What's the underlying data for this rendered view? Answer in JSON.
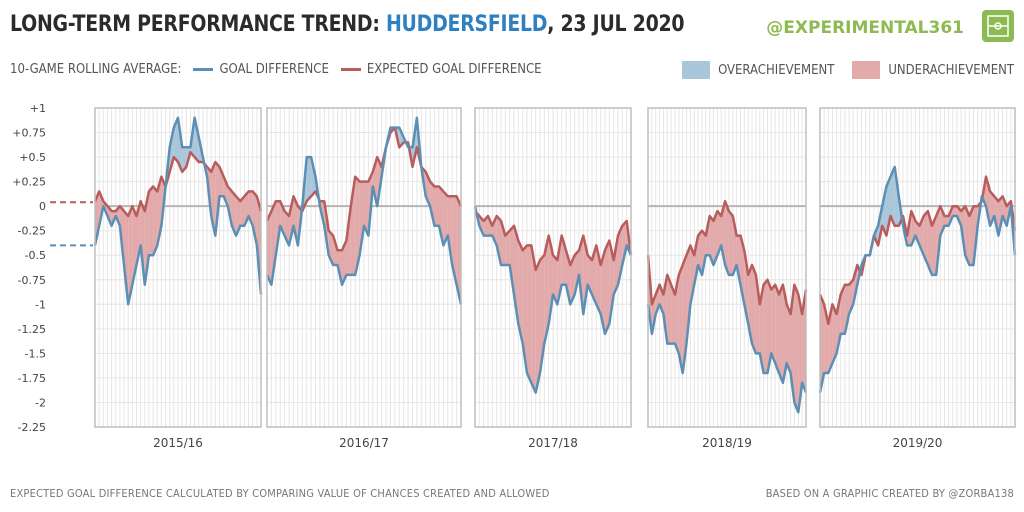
{
  "header": {
    "title_prefix": "LONG-TERM PERFORMANCE TREND: ",
    "team": "HUDDERSFIELD",
    "title_suffix": ", 23 JUL 2020",
    "handle": "@EXPERIMENTAL361"
  },
  "legend": {
    "rolling_label": "10-GAME ROLLING AVERAGE:",
    "goal_difference": "GOAL DIFFERENCE",
    "expected_goal_difference": "EXPECTED GOAL DIFFERENCE",
    "overachievement": "OVERACHIEVEMENT",
    "underachievement": "UNDERACHIEVEMENT"
  },
  "footer": {
    "note": "EXPECTED GOAL DIFFERENCE CALCULATED BY COMPARING VALUE OF CHANCES CREATED AND ALLOWED",
    "credit": "BASED ON A GRAPHIC CREATED BY @ZORBA138"
  },
  "colors": {
    "gd": "#5d8fb5",
    "xgd": "#b85c5c",
    "over": "#aac6da",
    "under": "#e2aaaa"
  },
  "chart_data": {
    "type": "line",
    "title": "LONG-TERM PERFORMANCE TREND: HUDDERSFIELD, 23 JUL 2020",
    "ylim": [
      -2.25,
      1
    ],
    "yticks": [
      1,
      0.75,
      0.5,
      0.25,
      0,
      -0.25,
      -0.5,
      -0.75,
      -1,
      -1.25,
      -1.5,
      -1.75,
      -2,
      -2.25
    ],
    "ytick_labels": [
      "+1",
      "+0.75",
      "+0.5",
      "+0.25",
      "0",
      "-0.25",
      "-0.5",
      "-0.75",
      "-1",
      "-1.25",
      "-1.5",
      "-1.75",
      "-2",
      "-2.25"
    ],
    "previous_season_baseline": {
      "gd": -0.4,
      "xgd": 0.04
    },
    "series_names": [
      "GOAL DIFFERENCE",
      "EXPECTED GOAL DIFFERENCE"
    ],
    "panels": [
      {
        "season": "2015/16",
        "gd": [
          -0.4,
          -0.2,
          0,
          -0.1,
          -0.2,
          -0.1,
          -0.2,
          -0.6,
          -1,
          -0.8,
          -0.6,
          -0.4,
          -0.8,
          -0.5,
          -0.5,
          -0.4,
          -0.2,
          0.2,
          0.6,
          0.8,
          0.9,
          0.6,
          0.6,
          0.6,
          0.9,
          0.7,
          0.5,
          0.3,
          -0.1,
          -0.3,
          0.1,
          0.1,
          0,
          -0.2,
          -0.3,
          -0.2,
          -0.2,
          -0.1,
          -0.2,
          -0.4,
          -0.9
        ],
        "xgd": [
          0.05,
          0.15,
          0.05,
          0,
          -0.05,
          -0.05,
          0,
          -0.05,
          -0.1,
          0,
          -0.1,
          0.05,
          -0.05,
          0.15,
          0.2,
          0.15,
          0.3,
          0.2,
          0.35,
          0.5,
          0.45,
          0.35,
          0.4,
          0.55,
          0.5,
          0.45,
          0.45,
          0.4,
          0.35,
          0.45,
          0.4,
          0.3,
          0.2,
          0.15,
          0.1,
          0.05,
          0.1,
          0.15,
          0.15,
          0.1,
          -0.05
        ]
      },
      {
        "season": "2016/17",
        "gd": [
          -0.7,
          -0.8,
          -0.5,
          -0.2,
          -0.3,
          -0.4,
          -0.2,
          -0.4,
          0,
          0.5,
          0.5,
          0.3,
          0,
          -0.2,
          -0.5,
          -0.6,
          -0.6,
          -0.8,
          -0.7,
          -0.7,
          -0.7,
          -0.5,
          -0.2,
          -0.3,
          0.2,
          0,
          0.3,
          0.6,
          0.8,
          0.8,
          0.8,
          0.7,
          0.6,
          0.6,
          0.9,
          0.4,
          0.1,
          0,
          -0.2,
          -0.2,
          -0.4,
          -0.3,
          -0.6,
          -0.8,
          -1
        ],
        "xgd": [
          -0.15,
          -0.05,
          0.05,
          0.05,
          -0.05,
          -0.1,
          0.1,
          0,
          -0.05,
          0.05,
          0.1,
          0.15,
          0.05,
          0.05,
          -0.25,
          -0.3,
          -0.45,
          -0.45,
          -0.35,
          0,
          0.3,
          0.25,
          0.25,
          0.25,
          0.35,
          0.5,
          0.4,
          0.6,
          0.75,
          0.8,
          0.6,
          0.65,
          0.65,
          0.4,
          0.6,
          0.4,
          0.35,
          0.25,
          0.2,
          0.2,
          0.15,
          0.1,
          0.1,
          0.1,
          0
        ]
      },
      {
        "season": "2017/18",
        "gd": [
          0,
          -0.2,
          -0.3,
          -0.3,
          -0.3,
          -0.4,
          -0.6,
          -0.6,
          -0.6,
          -0.9,
          -1.2,
          -1.4,
          -1.7,
          -1.8,
          -1.9,
          -1.7,
          -1.4,
          -1.2,
          -0.9,
          -1,
          -0.8,
          -0.8,
          -1,
          -0.9,
          -0.7,
          -1.1,
          -0.8,
          -0.9,
          -1,
          -1.1,
          -1.3,
          -1.2,
          -0.9,
          -0.8,
          -0.6,
          -0.4,
          -0.5
        ],
        "xgd": [
          -0.05,
          -0.1,
          -0.15,
          -0.1,
          -0.2,
          -0.1,
          -0.15,
          -0.3,
          -0.25,
          -0.2,
          -0.35,
          -0.45,
          -0.4,
          -0.4,
          -0.65,
          -0.55,
          -0.5,
          -0.3,
          -0.5,
          -0.55,
          -0.3,
          -0.45,
          -0.6,
          -0.5,
          -0.45,
          -0.3,
          -0.5,
          -0.55,
          -0.4,
          -0.6,
          -0.45,
          -0.35,
          -0.55,
          -0.3,
          -0.2,
          -0.15,
          -0.5
        ]
      },
      {
        "season": "2018/19",
        "gd": [
          -1,
          -1.3,
          -1.1,
          -1,
          -1.1,
          -1.4,
          -1.4,
          -1.4,
          -1.5,
          -1.7,
          -1.4,
          -1,
          -0.8,
          -0.6,
          -0.7,
          -0.5,
          -0.5,
          -0.6,
          -0.5,
          -0.4,
          -0.6,
          -0.7,
          -0.7,
          -0.6,
          -0.8,
          -1,
          -1.2,
          -1.4,
          -1.5,
          -1.5,
          -1.7,
          -1.7,
          -1.5,
          -1.6,
          -1.7,
          -1.8,
          -1.6,
          -1.7,
          -2,
          -2.1,
          -1.8,
          -1.9
        ],
        "xgd": [
          -0.5,
          -1,
          -0.9,
          -0.8,
          -0.9,
          -0.7,
          -0.8,
          -0.9,
          -0.7,
          -0.6,
          -0.5,
          -0.4,
          -0.5,
          -0.3,
          -0.25,
          -0.3,
          -0.1,
          -0.15,
          -0.05,
          -0.1,
          0.05,
          -0.05,
          -0.1,
          -0.3,
          -0.3,
          -0.45,
          -0.7,
          -0.6,
          -0.7,
          -1,
          -0.8,
          -0.75,
          -0.85,
          -0.8,
          -0.9,
          -0.8,
          -1,
          -1.1,
          -0.8,
          -0.9,
          -1.1,
          -0.85
        ]
      },
      {
        "season": "2019/20",
        "gd": [
          -1.9,
          -1.7,
          -1.7,
          -1.6,
          -1.5,
          -1.3,
          -1.3,
          -1.1,
          -1,
          -0.8,
          -0.6,
          -0.5,
          -0.5,
          -0.3,
          -0.2,
          0,
          0.2,
          0.3,
          0.4,
          0.1,
          -0.2,
          -0.4,
          -0.4,
          -0.3,
          -0.4,
          -0.5,
          -0.6,
          -0.7,
          -0.7,
          -0.3,
          -0.2,
          -0.2,
          -0.1,
          -0.1,
          -0.2,
          -0.5,
          -0.6,
          -0.6,
          -0.2,
          0.1,
          0,
          -0.2,
          -0.1,
          -0.3,
          -0.1,
          -0.2,
          0,
          -0.5
        ],
        "xgd": [
          -0.9,
          -1,
          -1.2,
          -1,
          -1.1,
          -0.9,
          -0.8,
          -0.8,
          -0.75,
          -0.6,
          -0.7,
          -0.5,
          -0.5,
          -0.3,
          -0.4,
          -0.2,
          -0.3,
          -0.1,
          -0.2,
          -0.2,
          -0.1,
          -0.3,
          -0.05,
          -0.15,
          -0.2,
          -0.1,
          -0.05,
          -0.2,
          -0.1,
          0,
          -0.1,
          -0.1,
          0,
          0,
          -0.05,
          0,
          -0.1,
          0,
          0,
          0.05,
          0.3,
          0.15,
          0.1,
          0.05,
          0.1,
          0,
          0.05,
          -0.25
        ]
      }
    ]
  }
}
